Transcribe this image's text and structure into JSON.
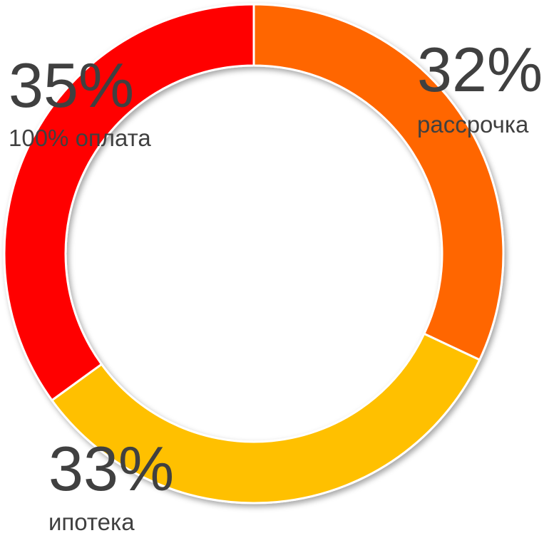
{
  "chart_data": {
    "type": "donut",
    "categories": [
      "рассрочка",
      "ипотека",
      "100% оплата"
    ],
    "values": [
      32,
      33,
      35
    ],
    "value_labels": [
      "32%",
      "33%",
      "35%"
    ],
    "colors": [
      "#ff6600",
      "#ffc000",
      "#ff0000"
    ]
  }
}
